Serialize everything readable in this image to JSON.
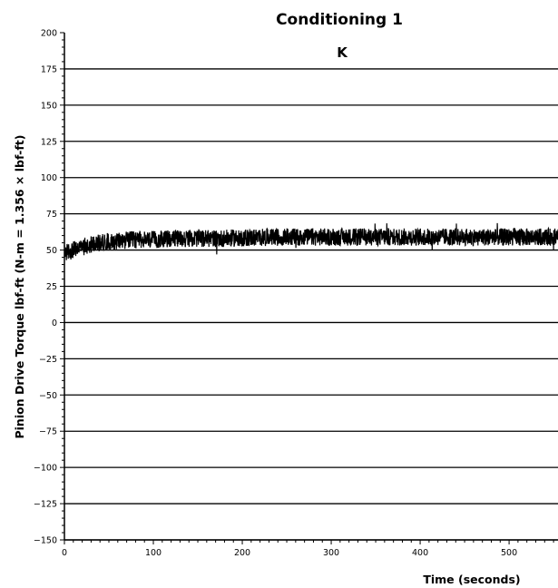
{
  "chart_data": {
    "type": "line",
    "title": "Conditioning 1",
    "panel_label": "K",
    "xlabel": "Time (seconds)",
    "ylabel": "Pinion Drive Torque lbf-ft (N-m = 1.356 × lbf-ft)",
    "xlim": [
      0,
      555
    ],
    "ylim": [
      -150,
      200
    ],
    "x_ticks": [
      0,
      100,
      200,
      300,
      400,
      500
    ],
    "x_tick_labels": [
      "0",
      "100",
      "200",
      "300",
      "400",
      "500"
    ],
    "y_ticks": [
      200,
      175,
      150,
      125,
      100,
      75,
      50,
      25,
      0,
      -25,
      -50,
      -75,
      -100,
      -125,
      -150
    ],
    "y_tick_labels": [
      "200",
      "175",
      "150",
      "125",
      "100",
      "75",
      "50",
      "25",
      "0",
      "−25",
      "−50",
      "−75",
      "−100",
      "−125",
      "−150"
    ],
    "grid": "horizontal",
    "series": [
      {
        "color": "#000000",
        "x": [
          0,
          5,
          10,
          15,
          20,
          25,
          30,
          40,
          50,
          60,
          70,
          80,
          90,
          100,
          120,
          140,
          160,
          180,
          200,
          250,
          300,
          350,
          400,
          450,
          500,
          555
        ],
        "y": [
          48,
          49,
          50,
          51,
          52,
          53,
          54,
          55,
          56,
          56,
          57,
          57,
          57,
          57,
          58,
          58,
          58,
          58,
          58.5,
          59,
          59,
          59,
          59,
          59,
          59,
          59
        ],
        "noise_amplitude": 6
      }
    ]
  }
}
